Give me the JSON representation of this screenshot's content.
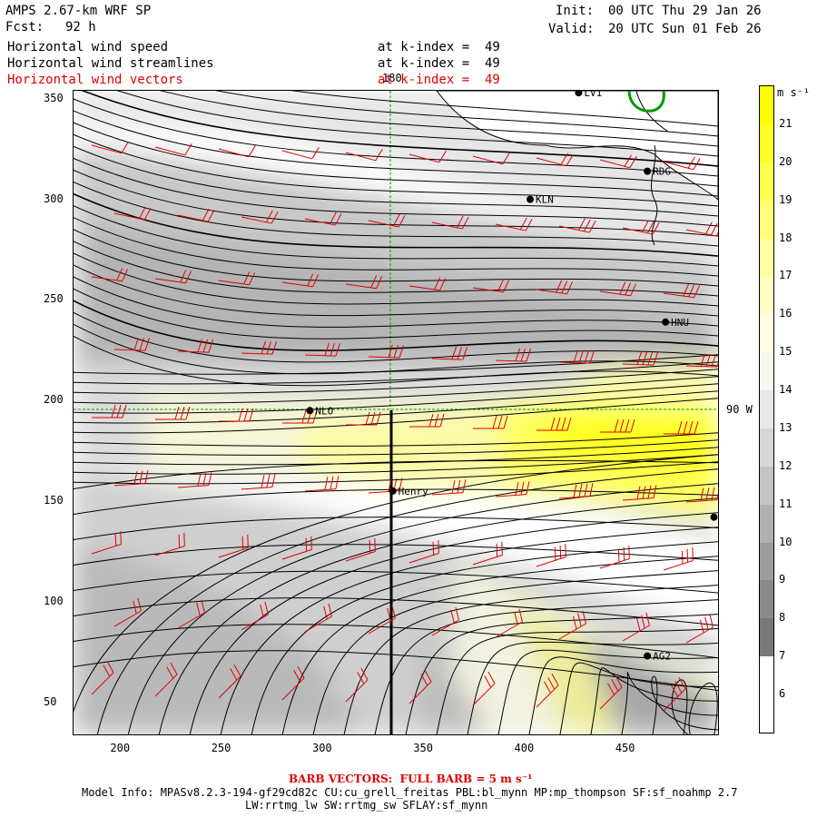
{
  "header": {
    "title_left": "AMPS 2.67-km WRF SP",
    "forecast_label": "Fcst:",
    "forecast_value": "92 h",
    "init_label": "Init:",
    "init_value": "00 UTC Thu 29 Jan 26",
    "valid_label": "Valid:",
    "valid_value": "20 UTC Sun 01 Feb 26"
  },
  "fields": [
    {
      "label": "Horizontal wind speed",
      "level": "at k-index =  49",
      "color": "#000000"
    },
    {
      "label": "Horizontal wind streamlines",
      "level": "at k-index =  49",
      "color": "#000000"
    },
    {
      "label": "Horizontal wind vectors",
      "level": "at k-index =  49",
      "color": "#e00000"
    }
  ],
  "map": {
    "x_ticks": [
      "200",
      "250",
      "300",
      "350",
      "400",
      "450"
    ],
    "y_ticks": [
      "350",
      "300",
      "250",
      "200",
      "150",
      "100",
      "50"
    ],
    "x_range": [
      176,
      495
    ],
    "y_range": [
      34,
      354
    ],
    "meridian_label": "180",
    "parallel_label": "90 W",
    "cross_section_x": 334,
    "stations": [
      {
        "name": "LV1",
        "x": 426,
        "y": 353
      },
      {
        "name": "RDG",
        "x": 460,
        "y": 314
      },
      {
        "name": "KLN",
        "x": 402,
        "y": 300
      },
      {
        "name": "HNU",
        "x": 469,
        "y": 239
      },
      {
        "name": "NLO",
        "x": 293,
        "y": 195
      },
      {
        "name": "Henry",
        "x": 334,
        "y": 155
      },
      {
        "name": "",
        "x": 493,
        "y": 142
      },
      {
        "name": "AG2",
        "x": 460,
        "y": 73
      }
    ]
  },
  "colorbar": {
    "unit": "m s⁻¹",
    "labels": [
      "21",
      "20",
      "19",
      "18",
      "17",
      "16",
      "15",
      "14",
      "13",
      "12",
      "11",
      "10",
      "9",
      "8",
      "7",
      "6"
    ],
    "colors": [
      "#ffff00",
      "#ffff24",
      "#ffff4c",
      "#ffff78",
      "#ffffa0",
      "#ffffc4",
      "#ffffe0",
      "#f8f8f0",
      "#e8e8e8",
      "#d6d6d6",
      "#c4c4c4",
      "#b0b0b0",
      "#9c9c9c",
      "#8a8a8a",
      "#787878",
      "#ffffff",
      "#ffffff"
    ]
  },
  "footer": {
    "barb_title": "BARB VECTORS:  FULL BARB = 5 m s⁻¹",
    "model_info": "Model Info: MPASv8.2.3-194-gf29cd82c CU:cu_grell_freitas PBL:bl_mynn MP:mp_thompson SF:sf_noahmp 2.7",
    "model_info2": "LW:rrtmg_lw SW:rrtmg_sw SFLAY:sf_mynn"
  }
}
